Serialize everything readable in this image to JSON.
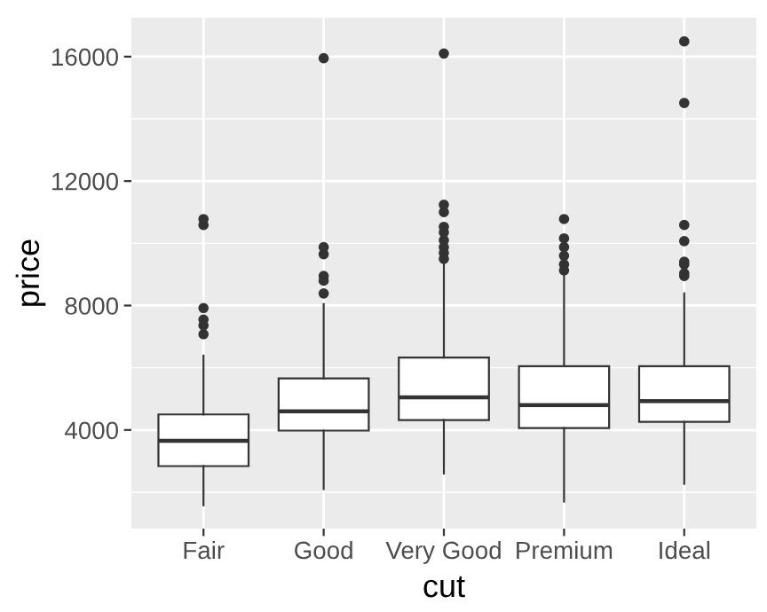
{
  "chart_data": {
    "type": "box",
    "xlabel": "cut",
    "ylabel": "price",
    "categories": [
      "Fair",
      "Good",
      "Very Good",
      "Premium",
      "Ideal"
    ],
    "boxes": [
      {
        "low": 1580,
        "q1": 2840,
        "median": 3650,
        "q3": 4500,
        "high": 6390,
        "outliers": [
          7080,
          7360,
          7550,
          7920,
          10590,
          10780
        ]
      },
      {
        "low": 2100,
        "q1": 3980,
        "median": 4600,
        "q3": 5660,
        "high": 8050,
        "outliers": [
          8390,
          8800,
          8950,
          9650,
          9880,
          15950
        ]
      },
      {
        "low": 2600,
        "q1": 4320,
        "median": 5050,
        "q3": 6330,
        "high": 9320,
        "outliers": [
          9500,
          9690,
          9880,
          10100,
          10350,
          10530,
          11000,
          11240,
          16100
        ]
      },
      {
        "low": 1700,
        "q1": 4060,
        "median": 4800,
        "q3": 6050,
        "high": 8950,
        "outliers": [
          9130,
          9320,
          9600,
          9880,
          10160,
          10780
        ]
      },
      {
        "low": 2270,
        "q1": 4260,
        "median": 4930,
        "q3": 6050,
        "high": 8390,
        "outliers": [
          8950,
          9040,
          9320,
          9410,
          10070,
          10590,
          14510,
          16490
        ]
      }
    ],
    "ylim": [
      830,
      17250
    ],
    "yticks": [
      4000,
      8000,
      12000,
      16000
    ],
    "grid": true
  }
}
